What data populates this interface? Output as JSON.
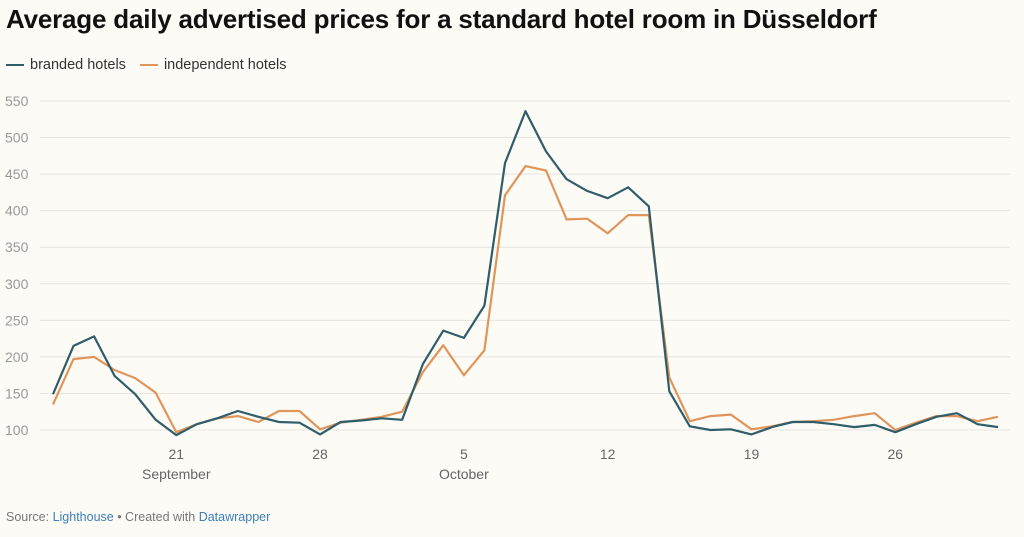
{
  "title": "Average daily advertised prices for a standard hotel room in Düsseldorf",
  "footer": {
    "source_label": "Source: ",
    "source_link": "Lighthouse",
    "sep": " • Created with ",
    "tool_link": "Datawrapper"
  },
  "colors": {
    "branded": "#2f5d6a",
    "independent": "#e0955a",
    "grid": "#e6e4df",
    "tick": "#999999"
  },
  "chart_data": {
    "type": "line",
    "title": "Average daily advertised prices for a standard hotel room in Düsseldorf",
    "xlabel": "",
    "ylabel": "",
    "x_start": "Sep 15",
    "x_end": "Oct 31",
    "x": [
      "Sep 15",
      "Sep 16",
      "Sep 17",
      "Sep 18",
      "Sep 19",
      "Sep 20",
      "Sep 21",
      "Sep 22",
      "Sep 23",
      "Sep 24",
      "Sep 25",
      "Sep 26",
      "Sep 27",
      "Sep 28",
      "Sep 29",
      "Sep 30",
      "Oct 1",
      "Oct 2",
      "Oct 3",
      "Oct 4",
      "Oct 5",
      "Oct 6",
      "Oct 7",
      "Oct 8",
      "Oct 9",
      "Oct 10",
      "Oct 11",
      "Oct 12",
      "Oct 13",
      "Oct 14",
      "Oct 15",
      "Oct 16",
      "Oct 17",
      "Oct 18",
      "Oct 19",
      "Oct 20",
      "Oct 21",
      "Oct 22",
      "Oct 23",
      "Oct 24",
      "Oct 25",
      "Oct 26",
      "Oct 27",
      "Oct 28",
      "Oct 29",
      "Oct 30",
      "Oct 31"
    ],
    "ylim": [
      100,
      550
    ],
    "yticks": [
      100,
      150,
      200,
      250,
      300,
      350,
      400,
      450,
      500,
      550
    ],
    "xticks": [
      {
        "index": 6,
        "label": "21",
        "sub": "September"
      },
      {
        "index": 13,
        "label": "28",
        "sub": ""
      },
      {
        "index": 20,
        "label": "5",
        "sub": "October"
      },
      {
        "index": 27,
        "label": "12",
        "sub": ""
      },
      {
        "index": 34,
        "label": "19",
        "sub": ""
      },
      {
        "index": 41,
        "label": "26",
        "sub": ""
      }
    ],
    "grid": true,
    "legend_position": "top-left",
    "series": [
      {
        "name": "branded hotels",
        "key": "branded",
        "values": [
          149,
          215,
          228,
          174,
          149,
          114,
          93,
          108,
          116,
          126,
          118,
          111,
          110,
          94,
          111,
          113,
          116,
          114,
          190,
          236,
          226,
          270,
          465,
          536,
          481,
          443,
          427,
          417,
          432,
          406,
          153,
          105,
          100,
          101,
          94,
          104,
          111,
          111,
          108,
          104,
          107,
          97,
          108,
          118,
          123,
          108,
          104
        ]
      },
      {
        "name": "independent hotels",
        "key": "independent",
        "values": [
          135,
          197,
          200,
          182,
          171,
          151,
          97,
          108,
          116,
          119,
          111,
          126,
          126,
          101,
          110,
          114,
          118,
          125,
          179,
          216,
          175,
          209,
          421,
          461,
          455,
          388,
          389,
          369,
          394,
          394,
          172,
          112,
          119,
          121,
          101,
          105,
          111,
          112,
          114,
          119,
          123,
          100,
          110,
          119,
          119,
          112,
          118
        ]
      }
    ]
  }
}
